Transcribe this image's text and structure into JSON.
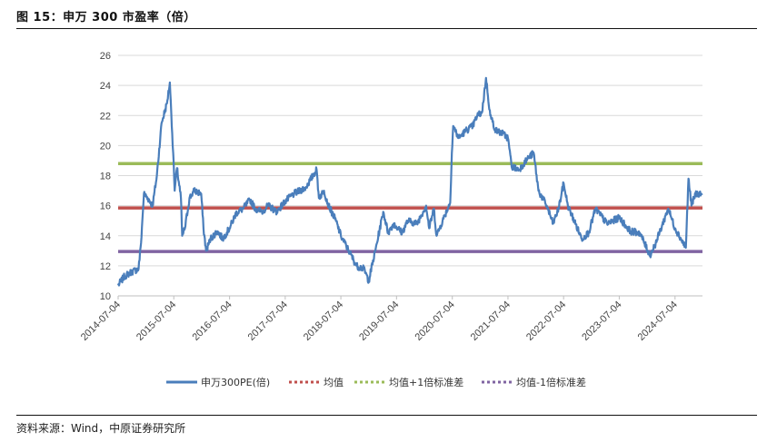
{
  "figure": {
    "title": "图 15：申万 300 市盈率（倍）",
    "source": "资料来源：Wind，中原证券研究所"
  },
  "chart_data": {
    "type": "line",
    "title": "",
    "xlabel": "",
    "ylabel": "",
    "ylim": [
      10,
      26
    ],
    "y_ticks": [
      10,
      12,
      14,
      16,
      18,
      20,
      22,
      24,
      26
    ],
    "x_tick_labels": [
      "2014-07-04",
      "2015-07-04",
      "2016-07-04",
      "2017-07-04",
      "2018-07-04",
      "2019-07-04",
      "2020-07-04",
      "2021-07-04",
      "2022-07-04",
      "2023-07-04",
      "2024-07-04"
    ],
    "x_range": [
      "2014-07-04",
      "2024-12-31"
    ],
    "grid": "horizontal",
    "legend_position": "bottom",
    "series": [
      {
        "name": "申万300PE(倍)",
        "kind": "line",
        "color": "#4a7ebb",
        "points": [
          [
            "2014-07-04",
            10.7
          ],
          [
            "2014-08-15",
            11.3
          ],
          [
            "2014-10-01",
            11.6
          ],
          [
            "2014-11-15",
            11.8
          ],
          [
            "2014-12-01",
            13.5
          ],
          [
            "2014-12-20",
            16.8
          ],
          [
            "2015-01-15",
            16.5
          ],
          [
            "2015-02-15",
            16.0
          ],
          [
            "2015-03-15",
            18.0
          ],
          [
            "2015-04-15",
            21.5
          ],
          [
            "2015-05-20",
            22.8
          ],
          [
            "2015-06-08",
            24.2
          ],
          [
            "2015-06-30",
            19.5
          ],
          [
            "2015-07-10",
            17.0
          ],
          [
            "2015-07-25",
            18.5
          ],
          [
            "2015-08-20",
            16.5
          ],
          [
            "2015-08-28",
            14.0
          ],
          [
            "2015-09-15",
            14.5
          ],
          [
            "2015-10-15",
            16.5
          ],
          [
            "2015-11-15",
            17.0
          ],
          [
            "2015-12-31",
            16.8
          ],
          [
            "2016-01-15",
            14.5
          ],
          [
            "2016-02-01",
            13.0
          ],
          [
            "2016-03-01",
            13.8
          ],
          [
            "2016-04-15",
            14.3
          ],
          [
            "2016-05-20",
            13.8
          ],
          [
            "2016-07-04",
            14.5
          ],
          [
            "2016-08-15",
            15.5
          ],
          [
            "2016-10-01",
            15.8
          ],
          [
            "2016-11-15",
            16.4
          ],
          [
            "2016-12-20",
            15.8
          ],
          [
            "2017-02-01",
            15.6
          ],
          [
            "2017-03-15",
            16.0
          ],
          [
            "2017-05-10",
            15.6
          ],
          [
            "2017-07-04",
            16.3
          ],
          [
            "2017-09-01",
            16.8
          ],
          [
            "2017-11-15",
            17.2
          ],
          [
            "2018-01-26",
            18.4
          ],
          [
            "2018-02-10",
            16.5
          ],
          [
            "2018-03-15",
            17.0
          ],
          [
            "2018-04-15",
            16.0
          ],
          [
            "2018-06-01",
            15.0
          ],
          [
            "2018-07-04",
            14.0
          ],
          [
            "2018-08-15",
            13.2
          ],
          [
            "2018-10-15",
            12.0
          ],
          [
            "2018-12-01",
            11.8
          ],
          [
            "2019-01-03",
            11.0
          ],
          [
            "2019-02-15",
            13.0
          ],
          [
            "2019-04-08",
            15.6
          ],
          [
            "2019-05-10",
            14.2
          ],
          [
            "2019-06-15",
            14.8
          ],
          [
            "2019-08-10",
            14.2
          ],
          [
            "2019-09-15",
            15.0
          ],
          [
            "2019-11-15",
            14.8
          ],
          [
            "2020-01-14",
            16.0
          ],
          [
            "2020-02-03",
            14.5
          ],
          [
            "2020-03-05",
            15.8
          ],
          [
            "2020-03-23",
            14.0
          ],
          [
            "2020-05-01",
            15.0
          ],
          [
            "2020-06-20",
            16.2
          ],
          [
            "2020-07-01",
            19.5
          ],
          [
            "2020-07-10",
            21.3
          ],
          [
            "2020-08-15",
            20.5
          ],
          [
            "2020-10-01",
            21.0
          ],
          [
            "2020-11-15",
            21.3
          ],
          [
            "2020-12-15",
            22.0
          ],
          [
            "2021-01-15",
            22.2
          ],
          [
            "2021-02-10",
            24.5
          ],
          [
            "2021-03-10",
            22.0
          ],
          [
            "2021-04-15",
            21.0
          ],
          [
            "2021-06-01",
            20.8
          ],
          [
            "2021-07-04",
            20.5
          ],
          [
            "2021-07-28",
            18.6
          ],
          [
            "2021-09-15",
            18.4
          ],
          [
            "2021-11-15",
            19.2
          ],
          [
            "2021-12-20",
            19.5
          ],
          [
            "2022-01-20",
            17.0
          ],
          [
            "2022-03-15",
            16.0
          ],
          [
            "2022-04-26",
            14.8
          ],
          [
            "2022-06-01",
            15.8
          ],
          [
            "2022-07-04",
            17.5
          ],
          [
            "2022-08-01",
            16.0
          ],
          [
            "2022-10-31",
            13.8
          ],
          [
            "2022-12-15",
            14.2
          ],
          [
            "2023-01-30",
            15.8
          ],
          [
            "2023-04-15",
            14.8
          ],
          [
            "2023-07-04",
            15.2
          ],
          [
            "2023-09-15",
            14.3
          ],
          [
            "2023-11-15",
            14.2
          ],
          [
            "2024-01-22",
            12.7
          ],
          [
            "2024-02-28",
            13.5
          ],
          [
            "2024-05-20",
            15.8
          ],
          [
            "2024-07-04",
            14.5
          ],
          [
            "2024-09-13",
            13.2
          ],
          [
            "2024-09-30",
            17.8
          ],
          [
            "2024-10-20",
            16.0
          ],
          [
            "2024-11-15",
            16.8
          ],
          [
            "2024-12-31",
            16.8
          ]
        ]
      },
      {
        "name": "均值",
        "kind": "hline",
        "value": 15.85,
        "color": "#c0504d"
      },
      {
        "name": "均值+1倍标准差",
        "kind": "hline",
        "value": 18.8,
        "color": "#9bbb59"
      },
      {
        "name": "均值-1倍标准差",
        "kind": "hline",
        "value": 12.95,
        "color": "#8064a2"
      }
    ]
  }
}
